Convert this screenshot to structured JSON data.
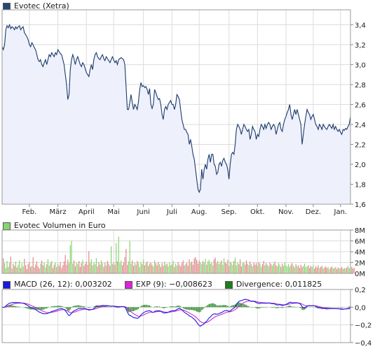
{
  "chart_data": [
    {
      "type": "line",
      "title": "Evotec (Xetra)",
      "series_color": "#1c3a6e",
      "fill_color": "#eef1fb",
      "ylim": [
        1.6,
        3.55
      ],
      "y_ticks": [
        "3,4",
        "3,2",
        "3,0",
        "2,8",
        "2,6",
        "2,4",
        "2,2",
        "2,0",
        "1,8",
        "1,6"
      ],
      "y_tick_values": [
        3.4,
        3.2,
        3.0,
        2.8,
        2.6,
        2.4,
        2.2,
        2.0,
        1.8,
        1.6
      ],
      "x_ticks": [
        "Feb.",
        "März",
        "April",
        "Mai",
        "Juni",
        "Juli",
        "Aug.",
        "Sep.",
        "Okt.",
        "Nov.",
        "Dez.",
        "Jan."
      ],
      "x_tick_index": [
        22,
        45,
        68,
        90,
        114,
        137,
        159,
        183,
        206,
        229,
        251,
        273
      ],
      "series": [
        {
          "values": [
            3.18,
            3.15,
            3.2,
            3.35,
            3.39,
            3.37,
            3.4,
            3.36,
            3.38,
            3.37,
            3.35,
            3.38,
            3.36,
            3.38,
            3.39,
            3.35,
            3.37,
            3.38,
            3.32,
            3.3,
            3.28,
            3.25,
            3.2,
            3.18,
            3.22,
            3.2,
            3.17,
            3.15,
            3.1,
            3.05,
            3.03,
            3.05,
            3.0,
            2.98,
            3.02,
            3.05,
            3.0,
            3.05,
            3.1,
            3.08,
            3.12,
            3.1,
            3.08,
            3.12,
            3.1,
            3.15,
            3.13,
            3.11,
            3.1,
            3.05,
            3.0,
            2.9,
            2.8,
            2.65,
            2.7,
            2.95,
            3.05,
            3.1,
            3.06,
            3.0,
            3.05,
            3.08,
            3.04,
            3.0,
            2.98,
            3.02,
            3.0,
            2.96,
            2.92,
            2.9,
            2.88,
            2.95,
            3.0,
            2.95,
            3.05,
            3.1,
            3.12,
            3.08,
            3.06,
            3.05,
            3.08,
            3.1,
            3.06,
            3.04,
            3.08,
            3.06,
            3.04,
            3.02,
            3.05,
            3.08,
            3.05,
            3.02,
            3.04,
            3.0,
            3.05,
            3.06,
            3.07,
            3.06,
            3.05,
            3.0,
            2.78,
            2.55,
            2.55,
            2.62,
            2.7,
            2.62,
            2.55,
            2.6,
            2.58,
            2.55,
            2.63,
            2.75,
            2.82,
            2.78,
            2.79,
            2.77,
            2.78,
            2.75,
            2.7,
            2.76,
            2.6,
            2.56,
            2.6,
            2.75,
            2.72,
            2.68,
            2.65,
            2.66,
            2.6,
            2.5,
            2.45,
            2.55,
            2.58,
            2.55,
            2.6,
            2.62,
            2.64,
            2.6,
            2.6,
            2.55,
            2.6,
            2.7,
            2.68,
            2.65,
            2.55,
            2.45,
            2.4,
            2.35,
            2.35,
            2.32,
            2.3,
            2.2,
            2.25,
            2.18,
            2.1,
            2.05,
            1.95,
            1.85,
            1.75,
            1.72,
            1.75,
            1.95,
            1.85,
            1.95,
            2.0,
            1.95,
            2.05,
            2.1,
            2.02,
            2.1,
            2.1,
            2.0,
            1.98,
            1.9,
            1.92,
            2.0,
            2.02,
            1.98,
            2.04,
            2.06,
            2.02,
            2.0,
            1.95,
            1.85,
            2.0,
            2.1,
            2.12,
            2.1,
            2.2,
            2.35,
            2.4,
            2.38,
            2.35,
            2.3,
            2.35,
            2.4,
            2.38,
            2.35,
            2.33,
            2.35,
            2.25,
            2.3,
            2.38,
            2.35,
            2.33,
            2.25,
            2.3,
            2.28,
            2.35,
            2.4,
            2.38,
            2.35,
            2.4,
            2.36,
            2.4,
            2.42,
            2.4,
            2.35,
            2.38,
            2.4,
            2.38,
            2.3,
            2.35,
            2.4,
            2.42,
            2.35,
            2.33,
            2.4,
            2.45,
            2.48,
            2.52,
            2.55,
            2.6,
            2.5,
            2.45,
            2.5,
            2.55,
            2.5,
            2.55,
            2.5,
            2.45,
            2.4,
            2.2,
            2.3,
            2.4,
            2.48,
            2.55,
            2.52,
            2.5,
            2.45,
            2.48,
            2.5,
            2.45,
            2.4,
            2.38,
            2.35,
            2.4,
            2.38,
            2.35,
            2.4,
            2.38,
            2.36,
            2.35,
            2.38,
            2.4,
            2.38,
            2.36,
            2.4,
            2.35,
            2.38,
            2.35,
            2.33,
            2.35,
            2.32,
            2.3,
            2.35,
            2.34,
            2.36,
            2.35,
            2.38,
            2.4,
            2.48
          ]
        }
      ]
    },
    {
      "type": "bar",
      "title": "Evotec Volumen in Euro",
      "ylim": [
        0,
        8
      ],
      "y_ticks": [
        "8M",
        "6M",
        "4M",
        "2M",
        "0M"
      ],
      "y_tick_values": [
        8,
        6,
        4,
        2,
        0
      ],
      "series": [
        {
          "values": [
            1.5,
            2.8,
            1.9,
            1.0,
            2.3,
            1.2,
            2.0,
            3.1,
            0.9,
            1.8,
            1.4,
            2.2,
            1.1,
            1.6,
            2.4,
            1.0,
            1.9,
            1.3,
            2.7,
            1.5,
            0.8,
            1.7,
            2.1,
            1.2,
            1.4,
            3.0,
            1.1,
            1.6,
            2.2,
            1.3,
            0.9,
            1.8,
            2.4,
            1.5,
            2.0,
            1.1,
            1.7,
            2.6,
            1.4,
            1.9,
            2.3,
            1.0,
            1.6,
            2.0,
            1.2,
            1.8,
            1.4,
            2.1,
            1.0,
            1.5,
            2.2,
            3.4,
            1.6,
            2.5,
            1.9,
            5.2,
            6.0,
            1.8,
            2.4,
            1.3,
            2.0,
            1.7,
            2.3,
            1.2,
            1.9,
            2.5,
            1.4,
            1.8,
            2.2,
            1.6,
            4.1,
            1.9,
            2.6,
            1.5,
            2.0,
            1.7,
            2.8,
            1.3,
            2.1,
            1.6,
            2.4,
            1.9,
            1.2,
            2.0,
            1.5,
            2.3,
            1.8,
            1.4,
            5.0,
            1.7,
            2.0,
            1.6,
            5.6,
            2.2,
            6.8,
            1.9,
            2.4,
            1.5,
            2.0,
            3.0,
            4.5,
            1.6,
            2.2,
            6.0,
            1.8,
            2.4,
            1.4,
            2.0,
            1.6,
            2.3,
            1.9,
            1.2,
            2.1,
            1.7,
            2.5,
            1.5,
            1.9,
            2.2,
            1.4,
            1.8,
            2.0,
            1.6,
            1.3,
            2.4,
            1.9,
            1.5,
            2.1,
            1.7,
            1.2,
            1.9,
            1.4,
            2.2,
            1.6,
            1.8,
            1.3,
            2.0,
            1.5,
            1.7,
            2.3,
            1.2,
            1.8,
            1.4,
            2.1,
            1.6,
            1.3,
            1.9,
            2.4,
            1.5,
            1.7,
            2.0,
            1.4,
            2.6,
            1.9,
            2.2,
            1.6,
            2.8,
            3.0,
            2.5,
            1.8,
            2.4,
            2.0,
            1.7,
            2.3,
            1.9,
            2.7,
            1.6,
            2.2,
            2.5,
            1.8,
            2.1,
            1.5,
            2.6,
            2.9,
            1.9,
            2.3,
            1.7,
            2.0,
            2.4,
            1.6,
            2.8,
            2.0,
            1.8,
            2.5,
            1.4,
            2.2,
            1.9,
            1.6,
            2.3,
            2.9,
            1.5,
            2.0,
            1.7,
            2.6,
            1.3,
            1.9,
            2.1,
            1.6,
            2.4,
            1.8,
            1.5,
            2.2,
            1.7,
            1.3,
            2.0,
            1.6,
            1.9,
            1.4,
            2.1,
            1.8,
            1.2,
            1.7,
            2.3,
            1.5,
            1.9,
            1.6,
            1.3,
            2.0,
            1.7,
            1.4,
            1.8,
            2.2,
            1.5,
            1.3,
            1.9,
            1.6,
            1.2,
            1.8,
            1.4,
            2.0,
            1.5,
            1.3,
            1.7,
            1.2,
            1.6,
            1.9,
            1.4,
            1.1,
            1.7,
            1.3,
            1.5,
            1.0,
            1.6,
            1.2,
            1.4,
            1.8,
            1.1,
            1.3,
            1.5,
            1.0,
            1.4,
            1.2,
            1.6,
            0.9,
            1.3,
            1.1,
            1.5,
            1.0,
            1.2,
            1.4,
            0.9,
            1.1,
            1.3,
            1.0,
            1.2,
            0.8,
            1.1,
            1.3,
            0.9,
            1.0,
            1.2,
            0.8,
            1.1,
            0.9,
            1.0,
            1.2,
            0.8,
            1.0,
            0.9,
            1.1,
            1.4,
            1.0,
            0.8,
            1.2,
            0.9,
            1.0
          ]
        }
      ]
    },
    {
      "type": "line",
      "ylim": [
        -0.4,
        0.2
      ],
      "y_ticks": [
        "0,2",
        "0,0",
        "−0,2",
        "−0,4"
      ],
      "y_tick_values": [
        0.2,
        0.0,
        -0.2,
        -0.4
      ],
      "series": [
        {
          "name": "MACD (26, 12)",
          "color": "#1a1adf"
        },
        {
          "name": "EXP (9)",
          "color": "#cc2bcc"
        },
        {
          "name": "Divergence",
          "color": "#1a7f1a"
        }
      ]
    }
  ],
  "legends": {
    "price": {
      "label": "Evotec (Xetra)",
      "color": "#2a4573"
    },
    "volume": {
      "label": "Evotec Volumen in Euro",
      "color": "#86d56e"
    },
    "macd": {
      "label": "MACD (26, 12): 0,003202",
      "color": "#1a1adf"
    },
    "exp": {
      "label": "EXP (9): −0,008623",
      "color": "#dd22dd"
    },
    "divergence": {
      "label": "Divergence: 0,011825",
      "color": "#1a7f1a"
    }
  },
  "volume_colors": {
    "up": "#86d56e",
    "down": "#e08a8a"
  }
}
